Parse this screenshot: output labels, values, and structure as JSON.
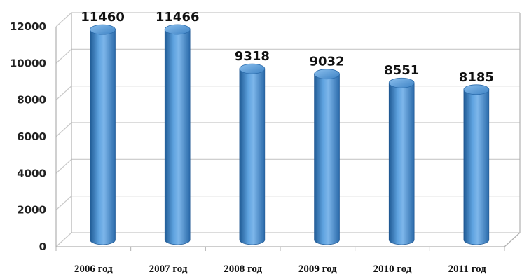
{
  "chart_data": {
    "type": "bar",
    "categories": [
      "2006 год",
      "2007 год",
      "2008 год",
      "2009 год",
      "2010 год",
      "2011 год"
    ],
    "values": [
      11460,
      11466,
      9318,
      9032,
      8551,
      8185
    ],
    "data_labels": [
      "11460",
      "11466",
      "9318",
      "9032",
      "8551",
      "8185"
    ],
    "ylim": [
      0,
      12000
    ],
    "yticks": [
      0,
      2000,
      4000,
      6000,
      8000,
      10000,
      12000
    ],
    "title": "",
    "xlabel": "",
    "ylabel": "",
    "grid": true,
    "style": "3d-cylinder",
    "colors": {
      "bar": "#3f86c8",
      "bar_dark": "#1f5a94",
      "bar_light": "#9cc6ee",
      "grid": "#c8c8c8",
      "axis": "#b0b0b0"
    }
  }
}
